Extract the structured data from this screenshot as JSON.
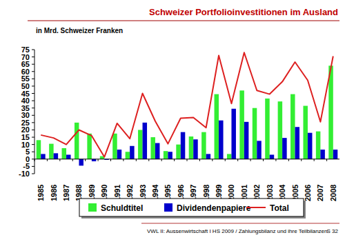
{
  "chart_data": {
    "type": "bar",
    "title": "Schweizer Portfolioinvestitionen im Ausland",
    "ylabel": "in Mrd. Schweizer Franken",
    "annotations": [
      "VWL II: Aussenwirtschaft I  HS 2009 / Zahlungsbilanz und ihre Teilbilanzen",
      "S 32"
    ],
    "categories": [
      "1985",
      "1986",
      "1987",
      "1988",
      "1989",
      "1990",
      "1991",
      "1992",
      "1993",
      "1994",
      "1995",
      "1996",
      "1997",
      "1998",
      "1999",
      "2000",
      "2001",
      "2002",
      "2003",
      "2004",
      "2005",
      "2006",
      "2007",
      "2008"
    ],
    "series": [
      {
        "name": "Schuldtitel",
        "type": "bar",
        "color": "#33ee33",
        "values": [
          13,
          10.5,
          7.5,
          25,
          17.5,
          2,
          17.5,
          5,
          20,
          15,
          5.5,
          10,
          15.5,
          18.5,
          44.5,
          3.5,
          47,
          35,
          41.5,
          39.5,
          44.5,
          36.5,
          19,
          64
        ]
      },
      {
        "name": "Dividendenpapiere",
        "type": "bar",
        "color": "#0000cc",
        "values": [
          3.5,
          4,
          3,
          -4.5,
          -1.5,
          -0.5,
          6.5,
          9,
          25,
          11,
          5,
          18.5,
          13.5,
          3.5,
          26.5,
          34.5,
          25.5,
          12.5,
          3,
          14.5,
          22,
          18,
          6.5,
          6.5
        ]
      },
      {
        "name": "Total",
        "type": "line",
        "color": "#dd2020",
        "values": [
          16.5,
          14.5,
          10,
          20,
          16,
          1.5,
          24.5,
          14,
          45,
          26,
          10.5,
          28,
          28.5,
          21.5,
          71,
          38,
          73,
          47,
          44.5,
          53,
          66.5,
          54,
          25.5,
          70.5
        ]
      }
    ],
    "ylim": [
      -10,
      75
    ],
    "yticks": [
      -10,
      -5,
      0,
      5,
      10,
      15,
      20,
      25,
      30,
      35,
      40,
      45,
      50,
      55,
      60,
      65,
      70,
      75
    ],
    "grid": false,
    "legend": "bottom"
  }
}
